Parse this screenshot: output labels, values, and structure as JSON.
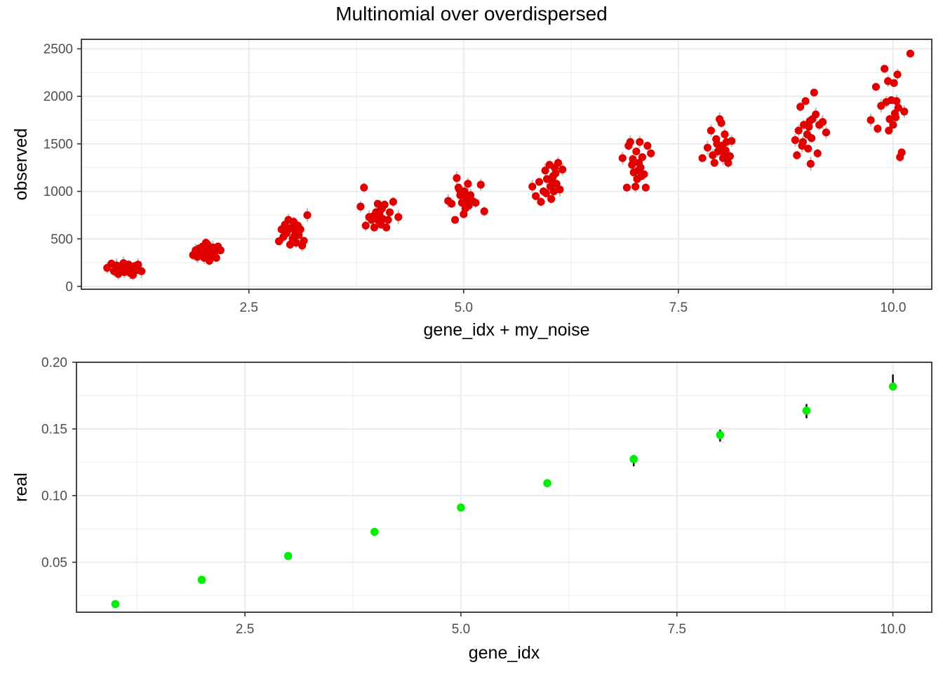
{
  "title": "Multinomial over overdispersed",
  "colors": {
    "grid": "#ebebeb",
    "panel_border": "#333333",
    "observed_point": "#e00000",
    "observed_segment": "#bfbfbf",
    "observed_segment_core": "#1a1a1a",
    "real_point": "#00ee00",
    "real_errorbar": "#000000"
  },
  "chart_data": [
    {
      "type": "scatter",
      "name": "top-panel",
      "xlabel": "gene_idx + my_noise",
      "ylabel": "observed",
      "xlim": [
        0.55,
        10.45
      ],
      "ylim": [
        -30,
        2600
      ],
      "xticks": [
        2.5,
        5.0,
        7.5,
        10.0
      ],
      "xtick_labels": [
        "2.5",
        "5.0",
        "7.5",
        "10.0"
      ],
      "yticks": [
        0,
        500,
        1000,
        1500,
        2000,
        2500
      ],
      "ytick_labels": [
        "0",
        "500",
        "1000",
        "1500",
        "2000",
        "2500"
      ],
      "grid": true,
      "groups": [
        {
          "gene": 1,
          "center": 190,
          "spread": 38,
          "points": [
            [
              0.85,
              195
            ],
            [
              0.9,
              240
            ],
            [
              0.93,
              160
            ],
            [
              0.96,
              220
            ],
            [
              0.98,
              130
            ],
            [
              1.0,
              205
            ],
            [
              1.02,
              175
            ],
            [
              1.04,
              245
            ],
            [
              1.05,
              150
            ],
            [
              1.07,
              210
            ],
            [
              1.09,
              185
            ],
            [
              1.1,
              230
            ],
            [
              1.12,
              140
            ],
            [
              1.13,
              200
            ],
            [
              1.15,
              120
            ],
            [
              1.17,
              215
            ],
            [
              1.19,
              170
            ],
            [
              1.21,
              230
            ],
            [
              1.25,
              160
            ],
            [
              0.95,
              185
            ],
            [
              1.03,
              195
            ],
            [
              1.08,
              165
            ]
          ]
        },
        {
          "gene": 2,
          "center": 370,
          "spread": 50,
          "points": [
            [
              1.85,
              330
            ],
            [
              1.88,
              380
            ],
            [
              1.9,
              310
            ],
            [
              1.92,
              400
            ],
            [
              1.94,
              350
            ],
            [
              1.96,
              420
            ],
            [
              1.98,
              300
            ],
            [
              2.0,
              460
            ],
            [
              2.01,
              360
            ],
            [
              2.02,
              440
            ],
            [
              2.04,
              270
            ],
            [
              2.05,
              390
            ],
            [
              2.06,
              330
            ],
            [
              2.08,
              410
            ],
            [
              2.1,
              350
            ],
            [
              2.12,
              300
            ],
            [
              2.14,
              420
            ],
            [
              2.17,
              380
            ],
            [
              1.95,
              370
            ],
            [
              2.03,
              340
            ],
            [
              2.07,
              395
            ]
          ]
        },
        {
          "gene": 3,
          "center": 560,
          "spread": 75,
          "points": [
            [
              2.85,
              475
            ],
            [
              2.88,
              600
            ],
            [
              2.9,
              520
            ],
            [
              2.92,
              650
            ],
            [
              2.94,
              560
            ],
            [
              2.96,
              700
            ],
            [
              2.98,
              440
            ],
            [
              3.0,
              620
            ],
            [
              3.01,
              500
            ],
            [
              3.02,
              680
            ],
            [
              3.04,
              580
            ],
            [
              3.05,
              460
            ],
            [
              3.07,
              640
            ],
            [
              3.08,
              540
            ],
            [
              3.1,
              600
            ],
            [
              3.12,
              430
            ],
            [
              3.14,
              480
            ],
            [
              3.18,
              750
            ],
            [
              2.95,
              590
            ],
            [
              3.03,
              530
            ],
            [
              3.06,
              610
            ]
          ]
        },
        {
          "gene": 4,
          "center": 730,
          "spread": 85,
          "points": [
            [
              3.8,
              840
            ],
            [
              3.84,
              1040
            ],
            [
              3.86,
              640
            ],
            [
              3.9,
              730
            ],
            [
              3.93,
              700
            ],
            [
              3.96,
              620
            ],
            [
              3.98,
              780
            ],
            [
              4.0,
              870
            ],
            [
              4.01,
              690
            ],
            [
              4.02,
              760
            ],
            [
              4.04,
              650
            ],
            [
              4.05,
              820
            ],
            [
              4.06,
              710
            ],
            [
              4.08,
              860
            ],
            [
              4.1,
              620
            ],
            [
              4.12,
              700
            ],
            [
              4.14,
              780
            ],
            [
              4.18,
              890
            ],
            [
              4.24,
              730
            ],
            [
              3.95,
              740
            ],
            [
              4.03,
              800
            ]
          ]
        },
        {
          "gene": 5,
          "center": 900,
          "spread": 90,
          "points": [
            [
              4.82,
              900
            ],
            [
              4.86,
              870
            ],
            [
              4.9,
              700
            ],
            [
              4.92,
              1140
            ],
            [
              4.94,
              1040
            ],
            [
              4.96,
              960
            ],
            [
              4.98,
              880
            ],
            [
              5.0,
              760
            ],
            [
              5.01,
              1000
            ],
            [
              5.02,
              820
            ],
            [
              5.04,
              920
            ],
            [
              5.05,
              1080
            ],
            [
              5.06,
              850
            ],
            [
              5.08,
              960
            ],
            [
              5.1,
              900
            ],
            [
              5.14,
              880
            ],
            [
              5.2,
              1070
            ],
            [
              5.24,
              790
            ],
            [
              4.95,
              1020
            ],
            [
              5.03,
              940
            ]
          ]
        },
        {
          "gene": 6,
          "center": 1080,
          "spread": 105,
          "points": [
            [
              5.8,
              1050
            ],
            [
              5.84,
              950
            ],
            [
              5.88,
              1100
            ],
            [
              5.9,
              890
            ],
            [
              5.93,
              1000
            ],
            [
              5.95,
              1220
            ],
            [
              5.97,
              1130
            ],
            [
              6.0,
              1280
            ],
            [
              6.01,
              1050
            ],
            [
              6.02,
              920
            ],
            [
              6.04,
              1160
            ],
            [
              6.05,
              1000
            ],
            [
              6.06,
              1250
            ],
            [
              6.08,
              1080
            ],
            [
              6.1,
              1300
            ],
            [
              6.12,
              1020
            ],
            [
              6.15,
              1230
            ],
            [
              5.96,
              980
            ],
            [
              6.03,
              1110
            ],
            [
              6.07,
              1190
            ]
          ]
        },
        {
          "gene": 7,
          "center": 1260,
          "spread": 130,
          "points": [
            [
              6.85,
              1350
            ],
            [
              6.9,
              1040
            ],
            [
              6.92,
              1480
            ],
            [
              6.94,
              1520
            ],
            [
              6.96,
              1280
            ],
            [
              6.98,
              1200
            ],
            [
              7.0,
              1050
            ],
            [
              7.01,
              1420
            ],
            [
              7.02,
              1130
            ],
            [
              7.04,
              1300
            ],
            [
              7.05,
              1520
            ],
            [
              7.06,
              1250
            ],
            [
              7.08,
              1360
            ],
            [
              7.1,
              1180
            ],
            [
              7.12,
              1040
            ],
            [
              7.14,
              1480
            ],
            [
              7.18,
              1400
            ],
            [
              6.97,
              1340
            ],
            [
              7.03,
              1220
            ],
            [
              7.07,
              1160
            ]
          ]
        },
        {
          "gene": 8,
          "center": 1450,
          "spread": 120,
          "points": [
            [
              7.78,
              1350
            ],
            [
              7.84,
              1460
            ],
            [
              7.88,
              1640
            ],
            [
              7.9,
              1380
            ],
            [
              7.92,
              1300
            ],
            [
              7.94,
              1550
            ],
            [
              7.96,
              1420
            ],
            [
              7.98,
              1760
            ],
            [
              8.0,
              1720
            ],
            [
              8.01,
              1480
            ],
            [
              8.02,
              1350
            ],
            [
              8.04,
              1600
            ],
            [
              8.05,
              1430
            ],
            [
              8.06,
              1520
            ],
            [
              8.08,
              1300
            ],
            [
              8.1,
              1370
            ],
            [
              8.12,
              1530
            ],
            [
              7.95,
              1500
            ],
            [
              8.03,
              1400
            ]
          ]
        },
        {
          "gene": 9,
          "center": 1630,
          "spread": 170,
          "points": [
            [
              8.86,
              1540
            ],
            [
              8.88,
              1380
            ],
            [
              8.9,
              1640
            ],
            [
              8.92,
              1890
            ],
            [
              8.94,
              1480
            ],
            [
              8.96,
              1700
            ],
            [
              8.98,
              1950
            ],
            [
              9.0,
              1600
            ],
            [
              9.01,
              1450
            ],
            [
              9.02,
              1680
            ],
            [
              9.04,
              1290
            ],
            [
              9.05,
              1560
            ],
            [
              9.06,
              1760
            ],
            [
              9.08,
              2040
            ],
            [
              9.1,
              1810
            ],
            [
              9.12,
              1400
            ],
            [
              9.14,
              1700
            ],
            [
              9.18,
              1730
            ],
            [
              9.22,
              1620
            ],
            [
              8.95,
              1520
            ],
            [
              9.03,
              1740
            ]
          ]
        },
        {
          "gene": 10,
          "center": 1820,
          "spread": 200,
          "points": [
            [
              9.74,
              1750
            ],
            [
              9.8,
              2100
            ],
            [
              9.82,
              1660
            ],
            [
              9.86,
              1900
            ],
            [
              9.9,
              2290
            ],
            [
              9.92,
              1940
            ],
            [
              9.94,
              2160
            ],
            [
              9.96,
              1760
            ],
            [
              9.98,
              1960
            ],
            [
              10.0,
              1700
            ],
            [
              10.01,
              2140
            ],
            [
              10.02,
              1820
            ],
            [
              10.04,
              1950
            ],
            [
              10.05,
              2230
            ],
            [
              10.06,
              1880
            ],
            [
              10.08,
              1360
            ],
            [
              10.1,
              1410
            ],
            [
              10.13,
              1840
            ],
            [
              10.2,
              2450
            ],
            [
              9.95,
              1640
            ],
            [
              10.03,
              1780
            ]
          ]
        }
      ]
    },
    {
      "type": "scatter",
      "name": "bottom-panel",
      "xlabel": "gene_idx",
      "ylabel": "real",
      "xlim": [
        0.55,
        10.45
      ],
      "ylim": [
        0.0125,
        0.2
      ],
      "xticks": [
        2.5,
        5.0,
        7.5,
        10.0
      ],
      "xtick_labels": [
        "2.5",
        "5.0",
        "7.5",
        "10.0"
      ],
      "yticks": [
        0.05,
        0.1,
        0.15,
        0.2
      ],
      "ytick_labels": [
        "0.05",
        "0.10",
        "0.15",
        "0.20"
      ],
      "grid": true,
      "x": [
        1,
        2,
        3,
        4,
        5,
        6,
        7,
        8,
        9,
        10
      ],
      "y": [
        0.0186,
        0.0368,
        0.0547,
        0.0728,
        0.091,
        0.1093,
        0.1274,
        0.1455,
        0.1637,
        0.1818
      ],
      "err_low": [
        0.0183,
        0.0363,
        0.0541,
        0.0721,
        0.0881,
        0.108,
        0.1219,
        0.1405,
        0.158,
        0.1796
      ],
      "err_high": [
        0.0189,
        0.0372,
        0.0553,
        0.0735,
        0.093,
        0.1116,
        0.1303,
        0.1495,
        0.1687,
        0.1909
      ]
    }
  ]
}
